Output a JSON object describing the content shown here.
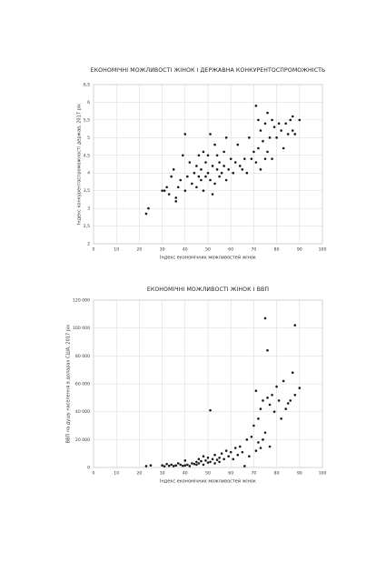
{
  "chart_data": [
    {
      "type": "scatter",
      "title": "ЕКОНОМІЧНІ МОЖЛИВОСТІ ЖІНОК І ДЕРЖАВНА КОНКУРЕНТОСПРОМОЖНІСТЬ",
      "x_label": "Індекс економічних можливостей жінок",
      "y_label": "Індекс конкурентоспроможності держав, 2017 рік",
      "xlim": [
        0,
        100
      ],
      "xticks": [
        0,
        10,
        20,
        30,
        40,
        50,
        60,
        70,
        80,
        90,
        100
      ],
      "ylim": [
        2,
        6.5
      ],
      "yticks": [
        2,
        {
          "value": 2.5,
          "label": "2,5"
        },
        3,
        {
          "value": 3.5,
          "label": "3,5"
        },
        4,
        {
          "value": 4.5,
          "label": "4,5"
        },
        5,
        {
          "value": 5.5,
          "label": "5,5"
        },
        6,
        {
          "value": 6.5,
          "label": "6,5"
        }
      ],
      "grid": true,
      "color": "#1a1a1a",
      "x": [
        23,
        24,
        30,
        31,
        32,
        33,
        34,
        35,
        36,
        36,
        37,
        38,
        39,
        40,
        40,
        41,
        42,
        43,
        44,
        45,
        45,
        46,
        46,
        47,
        47,
        48,
        48,
        49,
        49,
        50,
        50,
        51,
        51,
        52,
        52,
        53,
        53,
        54,
        54,
        55,
        55,
        56,
        57,
        57,
        58,
        58,
        59,
        60,
        61,
        62,
        63,
        64,
        65,
        66,
        67,
        68,
        69,
        70,
        71,
        71,
        72,
        72,
        73,
        73,
        74,
        75,
        75,
        76,
        76,
        77,
        78,
        78,
        79,
        80,
        81,
        82,
        83,
        84,
        85,
        86,
        87,
        87,
        88,
        90
      ],
      "values": [
        2.85,
        3.0,
        3.5,
        3.5,
        3.6,
        3.4,
        3.9,
        4.1,
        3.3,
        3.2,
        3.6,
        3.8,
        4.5,
        5.1,
        3.5,
        3.9,
        4.3,
        3.7,
        4.0,
        3.6,
        4.2,
        3.9,
        4.5,
        3.8,
        4.1,
        4.6,
        3.5,
        4.3,
        3.9,
        4.0,
        4.5,
        5.1,
        3.8,
        3.4,
        4.2,
        4.8,
        3.7,
        4.1,
        4.5,
        3.9,
        4.3,
        4.0,
        4.6,
        4.2,
        3.8,
        5.0,
        4.1,
        4.4,
        4.0,
        4.3,
        4.8,
        4.2,
        4.1,
        4.4,
        4.0,
        5.0,
        4.4,
        4.6,
        5.9,
        4.3,
        5.5,
        4.7,
        5.2,
        4.1,
        4.9,
        5.4,
        4.4,
        5.7,
        4.6,
        5.0,
        5.5,
        4.4,
        5.3,
        5.0,
        5.4,
        5.2,
        4.7,
        5.4,
        5.1,
        5.5,
        5.6,
        5.2,
        5.1,
        5.5
      ]
    },
    {
      "type": "scatter",
      "title": "ЕКОНОМІЧНІ МОЖЛИВОСТІ ЖІНОК І ВВП",
      "x_label": "Індекс економічних можливостей жінок",
      "y_label": "ВВП на душу населення в доларах США, 2017 рік",
      "xlim": [
        0,
        100
      ],
      "xticks": [
        0,
        10,
        20,
        30,
        40,
        50,
        60,
        70,
        80,
        90,
        100
      ],
      "ylim": [
        0,
        120000
      ],
      "yticks": [
        0,
        {
          "value": 20000,
          "label": "20 000"
        },
        {
          "value": 40000,
          "label": "40 000"
        },
        {
          "value": 60000,
          "label": "60 000"
        },
        {
          "value": 80000,
          "label": "80 000"
        },
        {
          "value": 100000,
          "label": "100 000"
        },
        {
          "value": 120000,
          "label": "120 000"
        }
      ],
      "grid": true,
      "color": "#1a1a1a",
      "x": [
        23,
        25,
        30,
        31,
        32,
        33,
        34,
        35,
        36,
        37,
        38,
        39,
        40,
        40,
        41,
        42,
        43,
        44,
        45,
        45,
        46,
        46,
        47,
        48,
        48,
        49,
        50,
        50,
        51,
        51,
        52,
        53,
        53,
        54,
        55,
        55,
        56,
        57,
        58,
        59,
        60,
        61,
        62,
        63,
        64,
        65,
        66,
        67,
        68,
        69,
        70,
        71,
        71,
        72,
        72,
        73,
        73,
        74,
        74,
        75,
        75,
        76,
        76,
        77,
        77,
        78,
        79,
        80,
        81,
        82,
        83,
        84,
        85,
        86,
        87,
        88,
        88,
        90
      ],
      "values": [
        1000,
        1500,
        1500,
        900,
        2500,
        1200,
        2000,
        1000,
        1500,
        3000,
        2000,
        1200,
        5000,
        1500,
        2000,
        1000,
        3000,
        2500,
        4000,
        2000,
        6000,
        3000,
        4500,
        2000,
        8000,
        5000,
        3500,
        7000,
        41000,
        4000,
        6000,
        9000,
        3000,
        5500,
        7000,
        4000,
        10000,
        6000,
        12000,
        8000,
        11000,
        6000,
        14000,
        9000,
        15000,
        11000,
        1000,
        20000,
        8000,
        22000,
        30000,
        55000,
        12000,
        18000,
        35000,
        42000,
        14000,
        48000,
        20000,
        107000,
        25000,
        84000,
        50000,
        45000,
        15000,
        52000,
        40000,
        58000,
        48000,
        35000,
        62000,
        42000,
        46000,
        48000,
        68000,
        102000,
        52000,
        57000
      ]
    }
  ]
}
